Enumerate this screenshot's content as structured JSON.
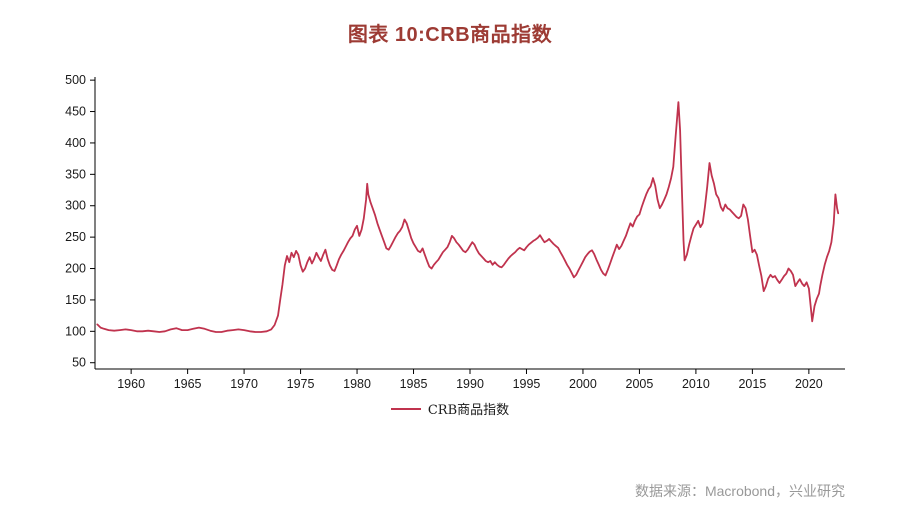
{
  "title": "图表 10:CRB商品指数",
  "source": "数据来源：Macrobond，兴业研究",
  "colors": {
    "title": "#9d3b34",
    "line": "#c0334e",
    "axis": "#000000",
    "tick_text": "#1a1a1a",
    "source_text": "#999999"
  },
  "chart_data": {
    "type": "line",
    "title": "图表 10:CRB商品指数",
    "legend": "CRB商品指数",
    "series_name": "CRB商品指数",
    "xlabel": "",
    "ylabel": "",
    "grid": false,
    "legend_position": "bottom-center",
    "xlim": [
      1956.8,
      2023.2
    ],
    "ylim": [
      40,
      505
    ],
    "yticks": [
      50,
      100,
      150,
      200,
      250,
      300,
      350,
      400,
      450,
      500
    ],
    "xticks": [
      1960,
      1965,
      1970,
      1975,
      1980,
      1985,
      1990,
      1995,
      2000,
      2005,
      2010,
      2015,
      2020
    ],
    "points": [
      [
        1957,
        111
      ],
      [
        1957.3,
        106
      ],
      [
        1957.6,
        104
      ],
      [
        1958,
        102
      ],
      [
        1958.5,
        101
      ],
      [
        1959,
        102
      ],
      [
        1959.5,
        103
      ],
      [
        1960,
        102
      ],
      [
        1960.5,
        100
      ],
      [
        1961,
        100
      ],
      [
        1961.5,
        101
      ],
      [
        1962,
        100
      ],
      [
        1962.5,
        99
      ],
      [
        1963,
        100
      ],
      [
        1963.5,
        103
      ],
      [
        1964,
        105
      ],
      [
        1964.5,
        102
      ],
      [
        1965,
        102
      ],
      [
        1965.5,
        104
      ],
      [
        1966,
        106
      ],
      [
        1966.5,
        104
      ],
      [
        1967,
        101
      ],
      [
        1967.5,
        99
      ],
      [
        1968,
        99
      ],
      [
        1968.5,
        101
      ],
      [
        1969,
        102
      ],
      [
        1969.5,
        103
      ],
      [
        1970,
        102
      ],
      [
        1970.5,
        100
      ],
      [
        1971,
        99
      ],
      [
        1971.5,
        99
      ],
      [
        1972,
        100
      ],
      [
        1972.4,
        103
      ],
      [
        1972.7,
        110
      ],
      [
        1973,
        125
      ],
      [
        1973.2,
        150
      ],
      [
        1973.4,
        175
      ],
      [
        1973.6,
        205
      ],
      [
        1973.8,
        220
      ],
      [
        1974,
        210
      ],
      [
        1974.2,
        225
      ],
      [
        1974.4,
        218
      ],
      [
        1974.6,
        228
      ],
      [
        1974.8,
        222
      ],
      [
        1975,
        205
      ],
      [
        1975.2,
        195
      ],
      [
        1975.4,
        200
      ],
      [
        1975.6,
        210
      ],
      [
        1975.8,
        218
      ],
      [
        1976,
        208
      ],
      [
        1976.2,
        215
      ],
      [
        1976.4,
        225
      ],
      [
        1976.6,
        218
      ],
      [
        1976.8,
        212
      ],
      [
        1977,
        222
      ],
      [
        1977.2,
        230
      ],
      [
        1977.4,
        215
      ],
      [
        1977.6,
        205
      ],
      [
        1977.8,
        198
      ],
      [
        1978,
        196
      ],
      [
        1978.2,
        205
      ],
      [
        1978.4,
        215
      ],
      [
        1978.6,
        222
      ],
      [
        1978.8,
        228
      ],
      [
        1979,
        235
      ],
      [
        1979.2,
        242
      ],
      [
        1979.4,
        248
      ],
      [
        1979.6,
        252
      ],
      [
        1979.8,
        262
      ],
      [
        1980,
        268
      ],
      [
        1980.2,
        252
      ],
      [
        1980.4,
        262
      ],
      [
        1980.6,
        280
      ],
      [
        1980.8,
        310
      ],
      [
        1980.9,
        335
      ],
      [
        1981,
        318
      ],
      [
        1981.2,
        305
      ],
      [
        1981.4,
        295
      ],
      [
        1981.6,
        285
      ],
      [
        1981.8,
        272
      ],
      [
        1982,
        262
      ],
      [
        1982.2,
        252
      ],
      [
        1982.4,
        242
      ],
      [
        1982.6,
        232
      ],
      [
        1982.8,
        230
      ],
      [
        1983,
        236
      ],
      [
        1983.2,
        243
      ],
      [
        1983.4,
        250
      ],
      [
        1983.6,
        256
      ],
      [
        1983.8,
        260
      ],
      [
        1984,
        266
      ],
      [
        1984.2,
        278
      ],
      [
        1984.4,
        272
      ],
      [
        1984.6,
        260
      ],
      [
        1984.8,
        248
      ],
      [
        1985,
        240
      ],
      [
        1985.2,
        234
      ],
      [
        1985.4,
        228
      ],
      [
        1985.6,
        226
      ],
      [
        1985.8,
        232
      ],
      [
        1986,
        222
      ],
      [
        1986.2,
        212
      ],
      [
        1986.4,
        203
      ],
      [
        1986.6,
        200
      ],
      [
        1986.8,
        206
      ],
      [
        1987,
        210
      ],
      [
        1987.2,
        214
      ],
      [
        1987.4,
        220
      ],
      [
        1987.6,
        226
      ],
      [
        1987.8,
        230
      ],
      [
        1988,
        234
      ],
      [
        1988.2,
        242
      ],
      [
        1988.4,
        252
      ],
      [
        1988.6,
        248
      ],
      [
        1988.8,
        242
      ],
      [
        1989,
        238
      ],
      [
        1989.2,
        233
      ],
      [
        1989.4,
        228
      ],
      [
        1989.6,
        226
      ],
      [
        1989.8,
        230
      ],
      [
        1990,
        236
      ],
      [
        1990.2,
        242
      ],
      [
        1990.4,
        238
      ],
      [
        1990.6,
        230
      ],
      [
        1990.8,
        224
      ],
      [
        1991,
        220
      ],
      [
        1991.2,
        216
      ],
      [
        1991.4,
        212
      ],
      [
        1991.6,
        210
      ],
      [
        1991.8,
        212
      ],
      [
        1992,
        206
      ],
      [
        1992.2,
        210
      ],
      [
        1992.4,
        206
      ],
      [
        1992.6,
        203
      ],
      [
        1992.8,
        202
      ],
      [
        1993,
        206
      ],
      [
        1993.2,
        211
      ],
      [
        1993.4,
        216
      ],
      [
        1993.6,
        220
      ],
      [
        1993.8,
        223
      ],
      [
        1994,
        226
      ],
      [
        1994.2,
        230
      ],
      [
        1994.4,
        233
      ],
      [
        1994.6,
        231
      ],
      [
        1994.8,
        229
      ],
      [
        1995,
        234
      ],
      [
        1995.2,
        238
      ],
      [
        1995.4,
        241
      ],
      [
        1995.6,
        244
      ],
      [
        1995.8,
        246
      ],
      [
        1996,
        249
      ],
      [
        1996.2,
        253
      ],
      [
        1996.4,
        247
      ],
      [
        1996.6,
        242
      ],
      [
        1996.8,
        244
      ],
      [
        1997,
        247
      ],
      [
        1997.2,
        243
      ],
      [
        1997.4,
        239
      ],
      [
        1997.6,
        236
      ],
      [
        1997.8,
        233
      ],
      [
        1998,
        226
      ],
      [
        1998.2,
        220
      ],
      [
        1998.4,
        213
      ],
      [
        1998.6,
        206
      ],
      [
        1998.8,
        200
      ],
      [
        1999,
        193
      ],
      [
        1999.2,
        186
      ],
      [
        1999.4,
        190
      ],
      [
        1999.6,
        197
      ],
      [
        1999.8,
        204
      ],
      [
        2000,
        211
      ],
      [
        2000.2,
        218
      ],
      [
        2000.4,
        223
      ],
      [
        2000.6,
        227
      ],
      [
        2000.8,
        229
      ],
      [
        2001,
        223
      ],
      [
        2001.2,
        214
      ],
      [
        2001.4,
        206
      ],
      [
        2001.6,
        198
      ],
      [
        2001.8,
        192
      ],
      [
        2002,
        189
      ],
      [
        2002.2,
        198
      ],
      [
        2002.4,
        208
      ],
      [
        2002.6,
        218
      ],
      [
        2002.8,
        228
      ],
      [
        2003,
        238
      ],
      [
        2003.2,
        231
      ],
      [
        2003.4,
        236
      ],
      [
        2003.6,
        244
      ],
      [
        2003.8,
        252
      ],
      [
        2004,
        262
      ],
      [
        2004.2,
        272
      ],
      [
        2004.4,
        267
      ],
      [
        2004.6,
        276
      ],
      [
        2004.8,
        283
      ],
      [
        2005,
        286
      ],
      [
        2005.2,
        298
      ],
      [
        2005.4,
        308
      ],
      [
        2005.6,
        318
      ],
      [
        2005.8,
        326
      ],
      [
        2006,
        331
      ],
      [
        2006.2,
        344
      ],
      [
        2006.4,
        332
      ],
      [
        2006.6,
        310
      ],
      [
        2006.8,
        296
      ],
      [
        2007,
        302
      ],
      [
        2007.2,
        310
      ],
      [
        2007.4,
        318
      ],
      [
        2007.6,
        330
      ],
      [
        2007.8,
        344
      ],
      [
        2008,
        362
      ],
      [
        2008.2,
        410
      ],
      [
        2008.45,
        465
      ],
      [
        2008.6,
        420
      ],
      [
        2008.75,
        330
      ],
      [
        2008.9,
        245
      ],
      [
        2009,
        213
      ],
      [
        2009.2,
        222
      ],
      [
        2009.4,
        238
      ],
      [
        2009.6,
        252
      ],
      [
        2009.8,
        264
      ],
      [
        2010,
        270
      ],
      [
        2010.2,
        276
      ],
      [
        2010.4,
        266
      ],
      [
        2010.6,
        272
      ],
      [
        2010.8,
        298
      ],
      [
        2011,
        330
      ],
      [
        2011.2,
        368
      ],
      [
        2011.4,
        348
      ],
      [
        2011.6,
        335
      ],
      [
        2011.8,
        318
      ],
      [
        2012,
        312
      ],
      [
        2012.2,
        298
      ],
      [
        2012.4,
        292
      ],
      [
        2012.6,
        302
      ],
      [
        2012.8,
        296
      ],
      [
        2013,
        294
      ],
      [
        2013.2,
        290
      ],
      [
        2013.4,
        286
      ],
      [
        2013.6,
        282
      ],
      [
        2013.8,
        280
      ],
      [
        2014,
        284
      ],
      [
        2014.2,
        302
      ],
      [
        2014.4,
        296
      ],
      [
        2014.6,
        278
      ],
      [
        2014.8,
        252
      ],
      [
        2015,
        226
      ],
      [
        2015.2,
        230
      ],
      [
        2015.4,
        222
      ],
      [
        2015.6,
        204
      ],
      [
        2015.8,
        188
      ],
      [
        2016,
        164
      ],
      [
        2016.2,
        172
      ],
      [
        2016.4,
        184
      ],
      [
        2016.6,
        190
      ],
      [
        2016.8,
        186
      ],
      [
        2017,
        188
      ],
      [
        2017.2,
        182
      ],
      [
        2017.4,
        177
      ],
      [
        2017.6,
        182
      ],
      [
        2017.8,
        188
      ],
      [
        2018,
        192
      ],
      [
        2018.2,
        200
      ],
      [
        2018.4,
        196
      ],
      [
        2018.6,
        190
      ],
      [
        2018.8,
        172
      ],
      [
        2019,
        178
      ],
      [
        2019.2,
        183
      ],
      [
        2019.4,
        176
      ],
      [
        2019.6,
        172
      ],
      [
        2019.8,
        178
      ],
      [
        2020,
        168
      ],
      [
        2020.3,
        116
      ],
      [
        2020.5,
        140
      ],
      [
        2020.7,
        152
      ],
      [
        2020.9,
        160
      ],
      [
        2021,
        172
      ],
      [
        2021.2,
        190
      ],
      [
        2021.4,
        206
      ],
      [
        2021.6,
        218
      ],
      [
        2021.8,
        228
      ],
      [
        2022,
        242
      ],
      [
        2022.2,
        272
      ],
      [
        2022.35,
        318
      ],
      [
        2022.5,
        296
      ],
      [
        2022.6,
        288
      ]
    ]
  }
}
